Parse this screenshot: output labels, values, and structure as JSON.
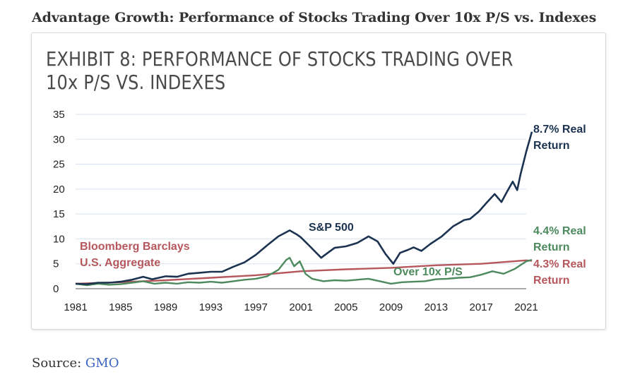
{
  "heading": "Advantage Growth: Performance of Stocks Trading Over 10x P/S vs. Indexes",
  "source": {
    "label": "Source:",
    "link": "GMO"
  },
  "chart_data": {
    "type": "line",
    "title": "EXHIBIT 8: PERFORMANCE OF STOCKS TRADING OVER 10x P/S VS. INDEXES",
    "title_lines": [
      "EXHIBIT 8: PERFORMANCE OF STOCKS TRADING OVER",
      "10x P/S VS. INDEXES"
    ],
    "xlim": [
      1981,
      2021
    ],
    "ylim": [
      0,
      35
    ],
    "x_ticks": [
      "1981",
      "1985",
      "1989",
      "1993",
      "1997",
      "2001",
      "2005",
      "2009",
      "2013",
      "2017",
      "2021"
    ],
    "y_ticks": [
      "0",
      "5",
      "10",
      "15",
      "20",
      "25",
      "30",
      "35"
    ],
    "grid": true,
    "series": [
      {
        "name": "S&P 500",
        "color": "#1b3350",
        "end_label": [
          "8.7% Real",
          "Return"
        ],
        "points": [
          [
            1981,
            1.0
          ],
          [
            1982,
            0.9
          ],
          [
            1983,
            1.2
          ],
          [
            1984,
            1.2
          ],
          [
            1985,
            1.4
          ],
          [
            1986,
            1.8
          ],
          [
            1987,
            2.4
          ],
          [
            1987.8,
            1.9
          ],
          [
            1988,
            2.0
          ],
          [
            1989,
            2.5
          ],
          [
            1990,
            2.4
          ],
          [
            1991,
            3.0
          ],
          [
            1992,
            3.2
          ],
          [
            1993,
            3.4
          ],
          [
            1994,
            3.4
          ],
          [
            1995,
            4.4
          ],
          [
            1996,
            5.3
          ],
          [
            1997,
            6.8
          ],
          [
            1998,
            8.7
          ],
          [
            1999,
            10.5
          ],
          [
            2000,
            11.7
          ],
          [
            2000.7,
            10.8
          ],
          [
            2001,
            10.3
          ],
          [
            2001.8,
            8.5
          ],
          [
            2002.8,
            6.2
          ],
          [
            2003.5,
            7.4
          ],
          [
            2004,
            8.2
          ],
          [
            2005,
            8.5
          ],
          [
            2006,
            9.2
          ],
          [
            2007,
            10.5
          ],
          [
            2007.8,
            9.5
          ],
          [
            2008.5,
            7.0
          ],
          [
            2009.2,
            5.0
          ],
          [
            2009.8,
            7.2
          ],
          [
            2010.5,
            7.8
          ],
          [
            2011,
            8.3
          ],
          [
            2011.7,
            7.6
          ],
          [
            2012.5,
            9.0
          ],
          [
            2013.5,
            10.5
          ],
          [
            2014.5,
            12.5
          ],
          [
            2015.5,
            13.8
          ],
          [
            2016,
            14.0
          ],
          [
            2016.8,
            15.5
          ],
          [
            2017.5,
            17.3
          ],
          [
            2018.2,
            19.0
          ],
          [
            2018.8,
            17.4
          ],
          [
            2019.3,
            19.5
          ],
          [
            2019.8,
            21.5
          ],
          [
            2020.2,
            19.8
          ],
          [
            2020.5,
            23.0
          ],
          [
            2021,
            27.5
          ],
          [
            2021.5,
            31.5
          ]
        ]
      },
      {
        "name": "Bloomberg Barclays U.S. Aggregate",
        "label_lines": [
          "Bloomberg Barclays",
          "U.S. Aggregate"
        ],
        "color": "#b5575c",
        "end_label": [
          "4.3% Real",
          "Return"
        ],
        "points": [
          [
            1981,
            1.0
          ],
          [
            1985,
            1.3
          ],
          [
            1989,
            1.7
          ],
          [
            1993,
            2.2
          ],
          [
            1997,
            2.7
          ],
          [
            2001,
            3.5
          ],
          [
            2005,
            3.9
          ],
          [
            2009,
            4.2
          ],
          [
            2013,
            4.7
          ],
          [
            2017,
            5.0
          ],
          [
            2021,
            5.7
          ],
          [
            2021.5,
            5.6
          ]
        ]
      },
      {
        "name": "Over 10x P/S",
        "color": "#4d8a5e",
        "end_label": [
          "4.4% Real",
          "Return"
        ],
        "points": [
          [
            1981,
            1.0
          ],
          [
            1982,
            0.7
          ],
          [
            1983,
            1.0
          ],
          [
            1984,
            0.8
          ],
          [
            1985,
            0.9
          ],
          [
            1986,
            1.2
          ],
          [
            1987,
            1.5
          ],
          [
            1988,
            1.0
          ],
          [
            1989,
            1.2
          ],
          [
            1990,
            1.0
          ],
          [
            1991,
            1.3
          ],
          [
            1992,
            1.2
          ],
          [
            1993,
            1.4
          ],
          [
            1994,
            1.2
          ],
          [
            1995,
            1.5
          ],
          [
            1996,
            1.8
          ],
          [
            1997,
            2.0
          ],
          [
            1998,
            2.5
          ],
          [
            1999,
            3.8
          ],
          [
            1999.7,
            5.8
          ],
          [
            2000,
            6.2
          ],
          [
            2000.4,
            4.5
          ],
          [
            2000.9,
            5.5
          ],
          [
            2001.4,
            3.0
          ],
          [
            2002,
            2.0
          ],
          [
            2003,
            1.5
          ],
          [
            2004,
            1.7
          ],
          [
            2005,
            1.6
          ],
          [
            2006,
            1.8
          ],
          [
            2007,
            2.0
          ],
          [
            2008,
            1.5
          ],
          [
            2009,
            1.0
          ],
          [
            2010,
            1.3
          ],
          [
            2011,
            1.4
          ],
          [
            2012,
            1.5
          ],
          [
            2013,
            1.9
          ],
          [
            2014,
            2.0
          ],
          [
            2015,
            2.2
          ],
          [
            2016,
            2.3
          ],
          [
            2017,
            2.8
          ],
          [
            2018,
            3.5
          ],
          [
            2019,
            3.0
          ],
          [
            2020,
            4.0
          ],
          [
            2021,
            5.5
          ],
          [
            2021.5,
            5.8
          ]
        ]
      }
    ]
  }
}
